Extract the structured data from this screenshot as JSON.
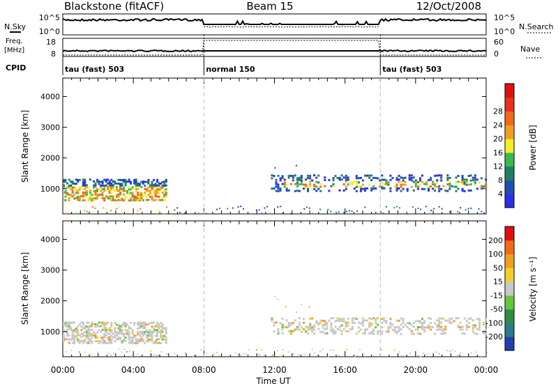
{
  "header": {
    "station": "Blackstone (fitACF)",
    "beam": "Beam 15",
    "date": "12/Oct/2008"
  },
  "aux": {
    "nsky_label": "N.Sky",
    "nsearch_label": "N.Search",
    "freq_label_1": "Freq.",
    "freq_label_2": "[MHz]",
    "nave_label": "Nave",
    "cpid_label": "CPID",
    "left_ticks_top": [
      "10^5",
      "10^0"
    ],
    "right_ticks_top": [
      "10^5",
      "10^0"
    ],
    "left_ticks_mid": [
      "18",
      "8"
    ],
    "right_ticks_mid": [
      "60",
      "0"
    ],
    "modes": [
      {
        "name": "tau (fast) 503",
        "start": 0,
        "end": 8
      },
      {
        "name": "normal 150",
        "start": 8,
        "end": 18
      },
      {
        "name": "tau (fast) 503",
        "start": 18,
        "end": 24
      }
    ]
  },
  "chart_data": [
    {
      "type": "heatmap",
      "panel": "power",
      "ylabel": "Slant Range [km]",
      "ylim": [
        180,
        4600
      ],
      "xlim": [
        0,
        24
      ],
      "yticks": [
        "1000",
        "2000",
        "3000",
        "4000"
      ],
      "colorbar": {
        "label": "Power [dB]",
        "ticks": [
          "4",
          "8",
          "12",
          "16",
          "20",
          "24",
          "28"
        ],
        "colors": [
          "#2e2ee8",
          "#1f4fb0",
          "#1f8060",
          "#3db84a",
          "#f2ee28",
          "#f0a020",
          "#f06a1a",
          "#e83020",
          "#e01010"
        ]
      }
    },
    {
      "type": "heatmap",
      "panel": "velocity",
      "ylabel": "Slant Range [km]",
      "ylim": [
        180,
        4600
      ],
      "xlim": [
        0,
        24
      ],
      "yticks": [
        "1000",
        "2000",
        "3000",
        "4000"
      ],
      "colorbar": {
        "label": "Velocity [m s⁻¹]",
        "ticks": [
          "200",
          "100",
          "50",
          "15",
          "-15",
          "-50",
          "-100",
          "-200"
        ],
        "colors": [
          "#1f3fb0",
          "#2a7a8a",
          "#2f8f40",
          "#62c83a",
          "#c8c8c8",
          "#f2d028",
          "#f0a020",
          "#f06a1a",
          "#e01010"
        ]
      }
    }
  ],
  "xaxis": {
    "ticks": [
      "00:00",
      "04:00",
      "08:00",
      "12:00",
      "16:00",
      "20:00",
      "00:00"
    ],
    "label": "Time UT"
  }
}
